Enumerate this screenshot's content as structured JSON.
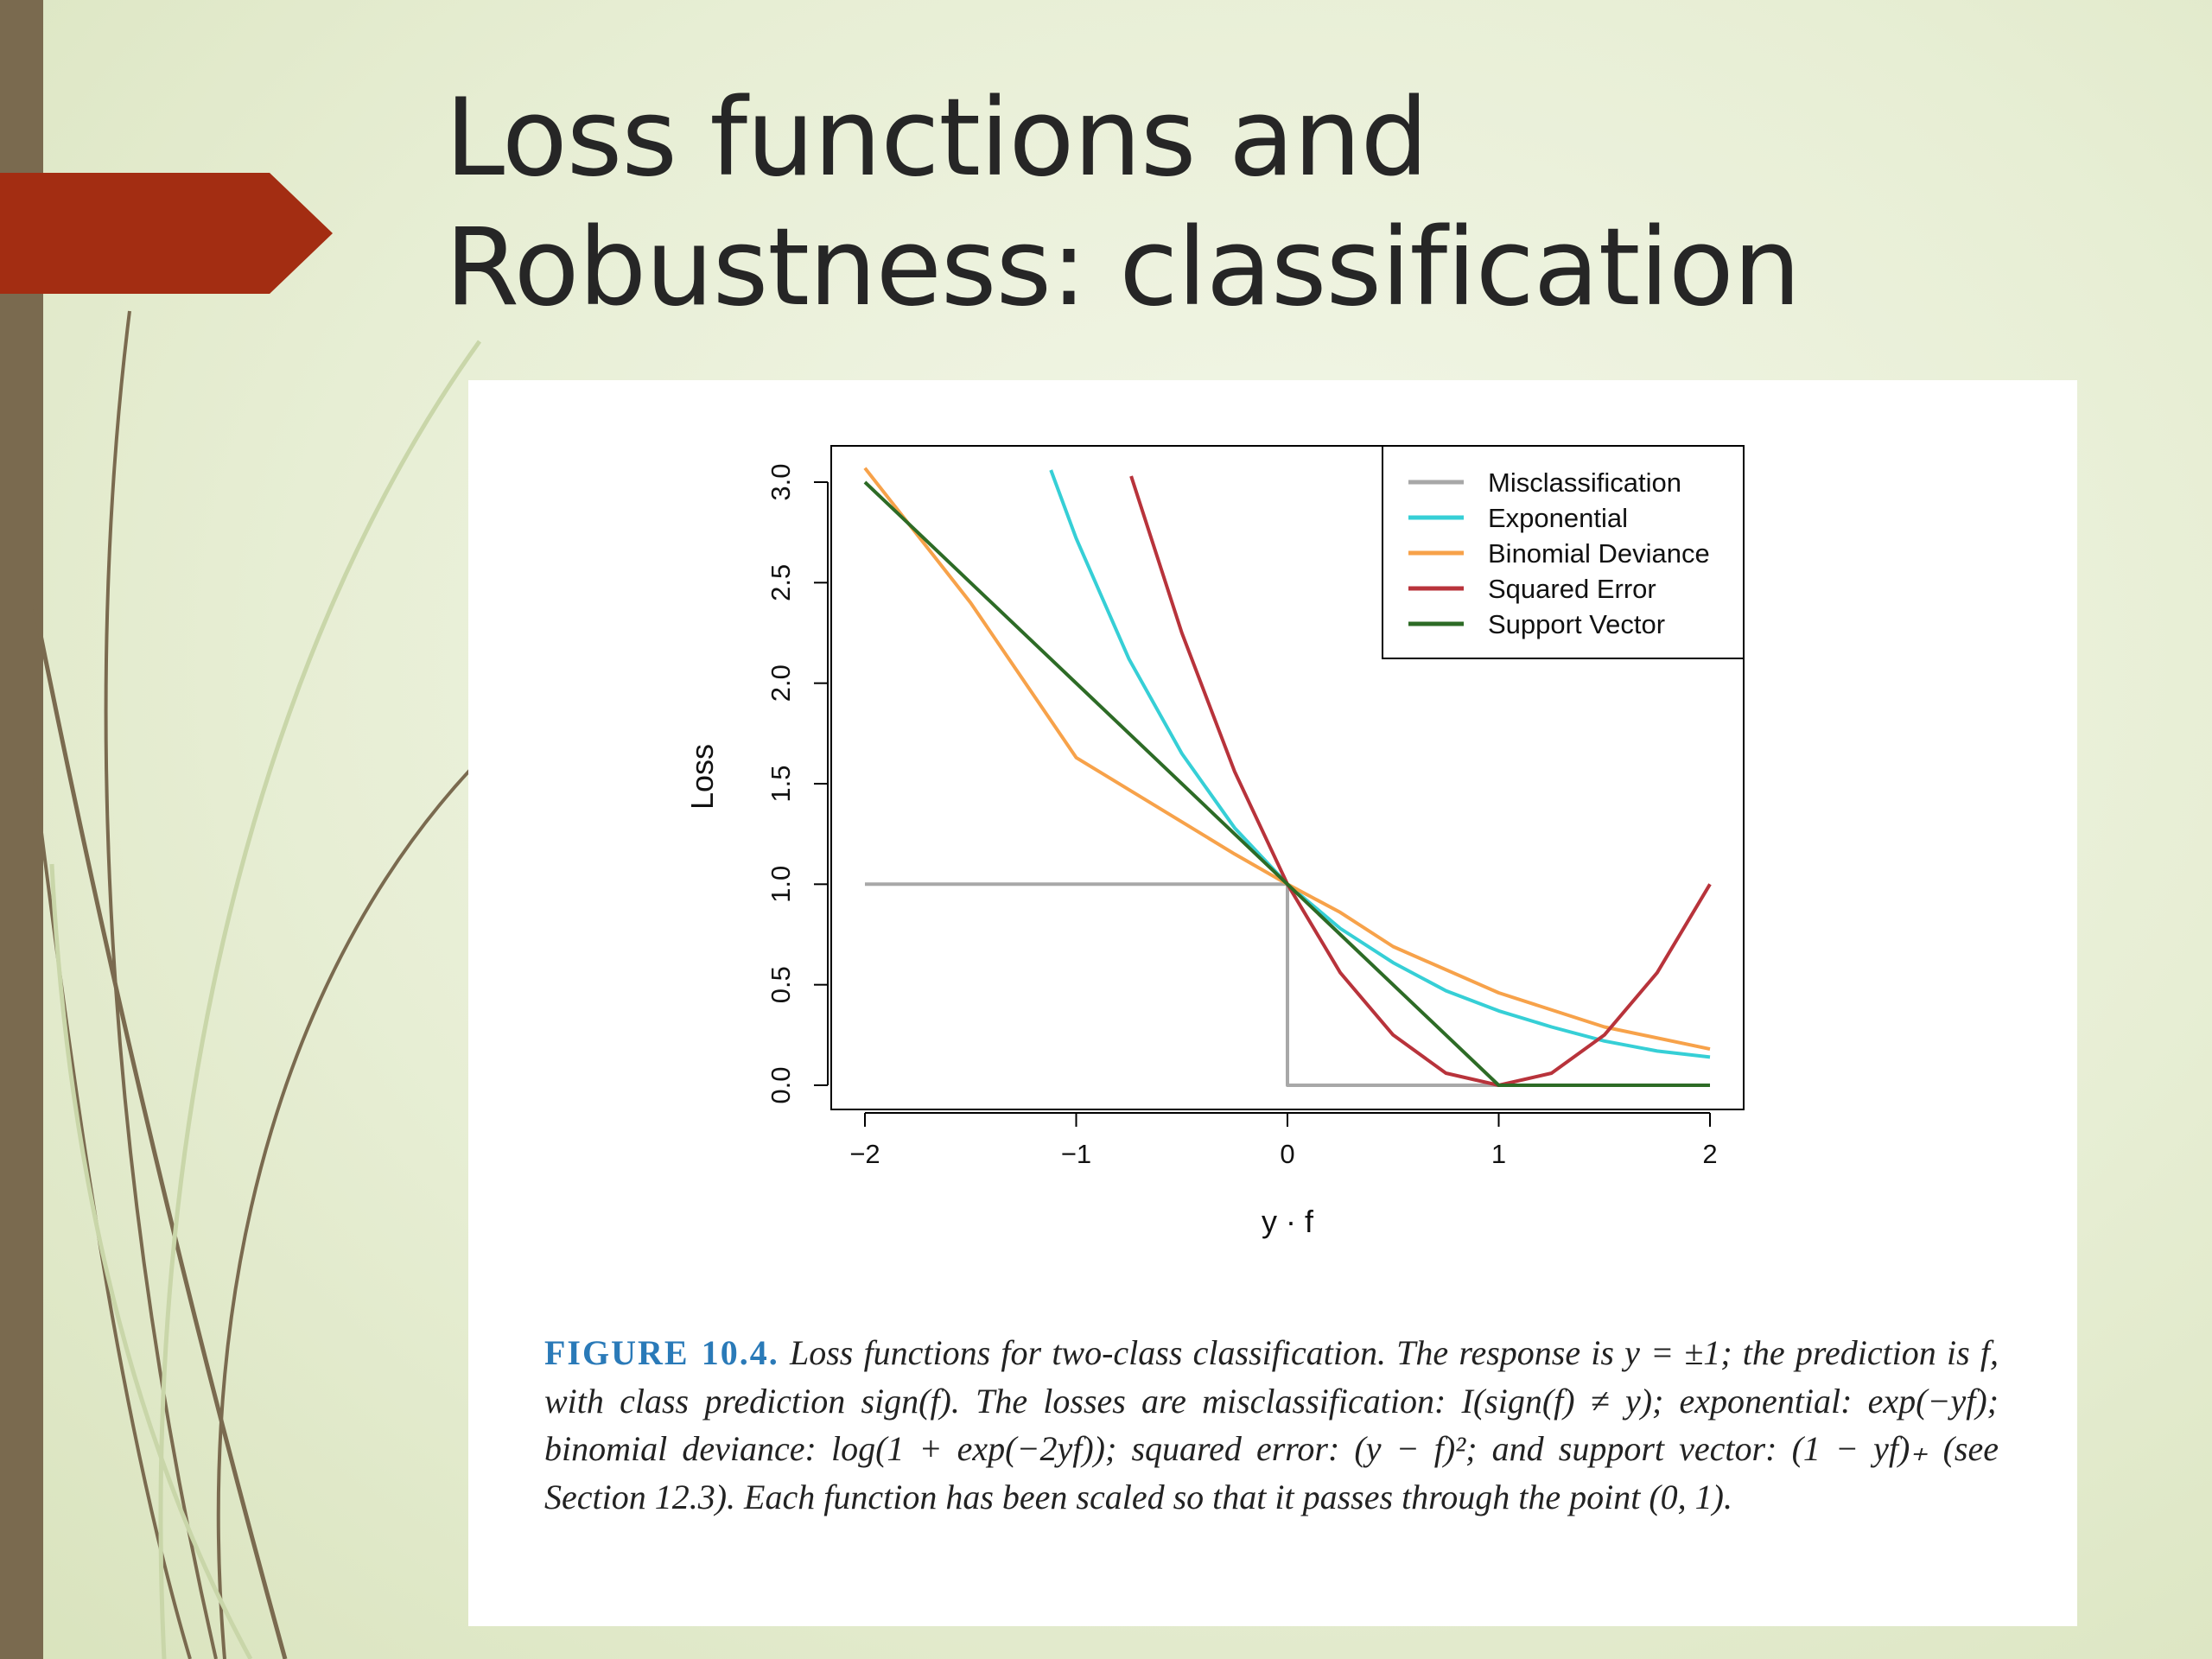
{
  "slide": {
    "title_line1": "Loss functions and",
    "title_line2": "Robustness: classification"
  },
  "colors": {
    "side_bar": "#7a6a4f",
    "arrow_tab": "#a32d12",
    "misclassification": "#a8a8a8",
    "exponential": "#36cfd6",
    "binomial_deviance": "#f7a24a",
    "squared_error": "#b8333b",
    "support_vector": "#2d6b26",
    "figure_label": "#2a7ab8"
  },
  "caption": {
    "label": "FIGURE 10.4.",
    "text": "Loss functions for two-class classification. The response is y = ±1; the prediction is f, with class prediction sign(f). The losses are misclassification: I(sign(f) ≠ y); exponential: exp(−yf); binomial deviance: log(1 + exp(−2yf)); squared error: (y − f)²; and support vector: (1 − yf)₊ (see Section 12.3). Each function has been scaled so that it passes through the point (0, 1)."
  },
  "chart_data": {
    "type": "line",
    "title": "",
    "xlabel": "y · f",
    "ylabel": "Loss",
    "xlim": [
      -2,
      2
    ],
    "ylim": [
      0,
      3
    ],
    "x_ticks": [
      -2,
      -1,
      0,
      1,
      2
    ],
    "x_tick_labels": [
      "−2",
      "−1",
      "0",
      "1",
      "2"
    ],
    "y_ticks": [
      0,
      0.5,
      1,
      1.5,
      2,
      2.5,
      3
    ],
    "y_tick_labels": [
      "0.0",
      "0.5",
      "1.0",
      "1.5",
      "2.0",
      "2.5",
      "3.0"
    ],
    "legend_position": "top-right",
    "grid": false,
    "series": [
      {
        "name": "Misclassification",
        "color": "#a8a8a8",
        "x": [
          -2,
          0,
          0,
          2
        ],
        "y": [
          1,
          1,
          0,
          0
        ]
      },
      {
        "name": "Exponential",
        "color": "#36cfd6",
        "x": [
          -1.12,
          -1,
          -0.75,
          -0.5,
          -0.25,
          0,
          0.25,
          0.5,
          0.75,
          1,
          1.25,
          1.5,
          1.75,
          2
        ],
        "y": [
          3.06,
          2.72,
          2.12,
          1.65,
          1.28,
          1.0,
          0.78,
          0.61,
          0.47,
          0.37,
          0.29,
          0.22,
          0.17,
          0.14
        ]
      },
      {
        "name": "Binomial Deviance",
        "color": "#f7a24a",
        "x": [
          -2,
          -1.5,
          -1,
          -0.5,
          -0.25,
          0,
          0.25,
          0.5,
          1,
          1.5,
          2
        ],
        "y": [
          3.07,
          2.4,
          1.63,
          1.31,
          1.15,
          1.0,
          0.86,
          0.69,
          0.46,
          0.29,
          0.18
        ]
      },
      {
        "name": "Squared Error",
        "color": "#b8333b",
        "x": [
          -0.74,
          -0.5,
          -0.25,
          0,
          0.25,
          0.5,
          0.75,
          1,
          1.25,
          1.5,
          1.75,
          2
        ],
        "y": [
          3.03,
          2.25,
          1.56,
          1.0,
          0.56,
          0.25,
          0.06,
          0.0,
          0.06,
          0.25,
          0.56,
          1.0
        ]
      },
      {
        "name": "Support Vector",
        "color": "#2d6b26",
        "x": [
          -2,
          1,
          2
        ],
        "y": [
          3.0,
          0.0,
          0.0
        ]
      }
    ]
  }
}
